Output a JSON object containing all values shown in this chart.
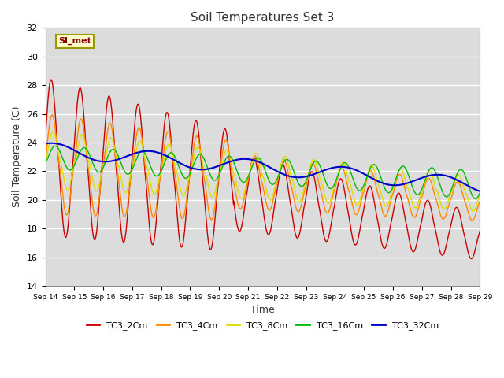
{
  "title": "Soil Temperatures Set 3",
  "xlabel": "Time",
  "ylabel": "Soil Temperature (C)",
  "ylim": [
    14,
    32
  ],
  "annotation": "SI_met",
  "legend": [
    "TC3_2Cm",
    "TC3_4Cm",
    "TC3_8Cm",
    "TC3_16Cm",
    "TC3_32Cm"
  ],
  "colors": [
    "#cc0000",
    "#ff8800",
    "#dddd00",
    "#00bb00",
    "#0000cc"
  ],
  "background_color": "#dcdcdc",
  "grid_color": "#ffffff",
  "fig_color": "#ffffff",
  "xtick_labels": [
    "Sep 14",
    "Sep 15",
    "Sep 16",
    "Sep 17",
    "Sep 18",
    "Sep 19",
    "Sep 20",
    "Sep 21",
    "Sep 22",
    "Sep 23",
    "Sep 24",
    "Sep 25",
    "Sep 26",
    "Sep 27",
    "Sep 28",
    "Sep 29"
  ],
  "ytick_values": [
    14,
    16,
    18,
    20,
    22,
    24,
    26,
    28,
    30,
    32
  ],
  "n_points": 3000
}
